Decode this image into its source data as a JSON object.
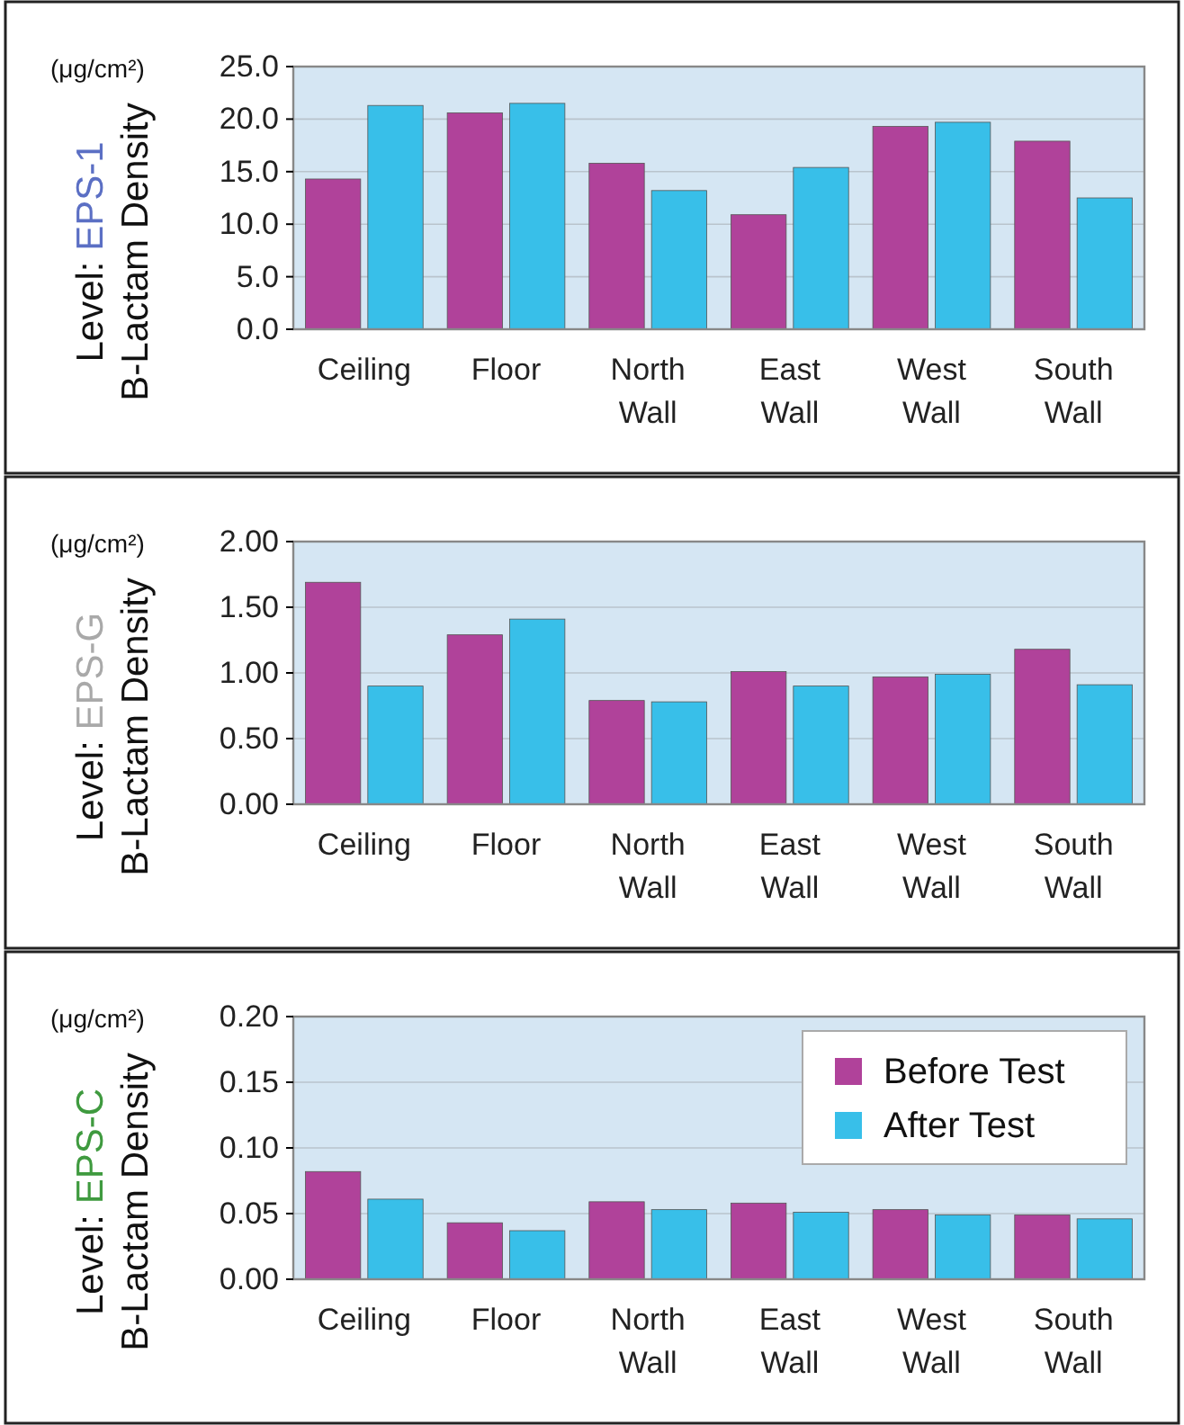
{
  "chart_data": [
    {
      "type": "bar",
      "title": "Level: EPS-1",
      "ylabel": "B-Lactam Density",
      "annotations": [
        "(μg/cm²)"
      ],
      "categories": [
        "Ceiling",
        "Floor",
        "North Wall",
        "East Wall",
        "West Wall",
        "South Wall"
      ],
      "series": [
        {
          "color": "#b0429a",
          "values": [
            14.3,
            20.6,
            15.8,
            10.9,
            19.3,
            17.9
          ]
        },
        {
          "color": "#38bfe9",
          "values": [
            21.3,
            21.5,
            13.2,
            15.4,
            19.7,
            12.5
          ]
        }
      ],
      "ylim": [
        0,
        25
      ],
      "yticks": [
        {
          "value": 0,
          "label": "0.0"
        },
        {
          "value": 5,
          "label": "5.0"
        },
        {
          "value": 10,
          "label": "10.0"
        },
        {
          "value": 15,
          "label": "15.0"
        },
        {
          "value": 20,
          "label": "20.0"
        },
        {
          "value": 25,
          "label": "25.0"
        }
      ],
      "grid": "y",
      "legend": false
    },
    {
      "type": "bar",
      "title": "Level: EPS-G",
      "ylabel": "B-Lactam Density",
      "annotations": [
        "(μg/cm²)"
      ],
      "categories": [
        "Ceiling",
        "Floor",
        "North Wall",
        "East Wall",
        "West Wall",
        "South Wall"
      ],
      "series": [
        {
          "color": "#b0429a",
          "values": [
            1.69,
            1.29,
            0.79,
            1.01,
            0.97,
            1.18
          ]
        },
        {
          "color": "#38bfe9",
          "values": [
            0.9,
            1.41,
            0.78,
            0.9,
            0.99,
            0.91
          ]
        }
      ],
      "ylim": [
        0,
        2
      ],
      "yticks": [
        {
          "value": 0,
          "label": "0.00"
        },
        {
          "value": 0.5,
          "label": "0.50"
        },
        {
          "value": 1,
          "label": "1.00"
        },
        {
          "value": 1.5,
          "label": "1.50"
        },
        {
          "value": 2,
          "label": "2.00"
        }
      ],
      "grid": "y",
      "legend": false
    },
    {
      "type": "bar",
      "title": "Level: EPS-C",
      "ylabel": "B-Lactam Density",
      "annotations": [
        "(μg/cm²)"
      ],
      "categories": [
        "Ceiling",
        "Floor",
        "North Wall",
        "East Wall",
        "West Wall",
        "South Wall"
      ],
      "series": [
        {
          "name": "Before Test",
          "color": "#b0429a",
          "values": [
            0.082,
            0.043,
            0.059,
            0.058,
            0.053,
            0.049
          ]
        },
        {
          "name": "After Test",
          "color": "#38bfe9",
          "values": [
            0.061,
            0.037,
            0.053,
            0.051,
            0.049,
            0.046
          ]
        }
      ],
      "ylim": [
        0,
        0.2
      ],
      "yticks": [
        {
          "value": 0,
          "label": "0.00"
        },
        {
          "value": 0.05,
          "label": "0.05"
        },
        {
          "value": 0.1,
          "label": "0.10"
        },
        {
          "value": 0.15,
          "label": "0.15"
        },
        {
          "value": 0.2,
          "label": "0.20"
        }
      ],
      "grid": "y",
      "legend": "top right"
    }
  ]
}
